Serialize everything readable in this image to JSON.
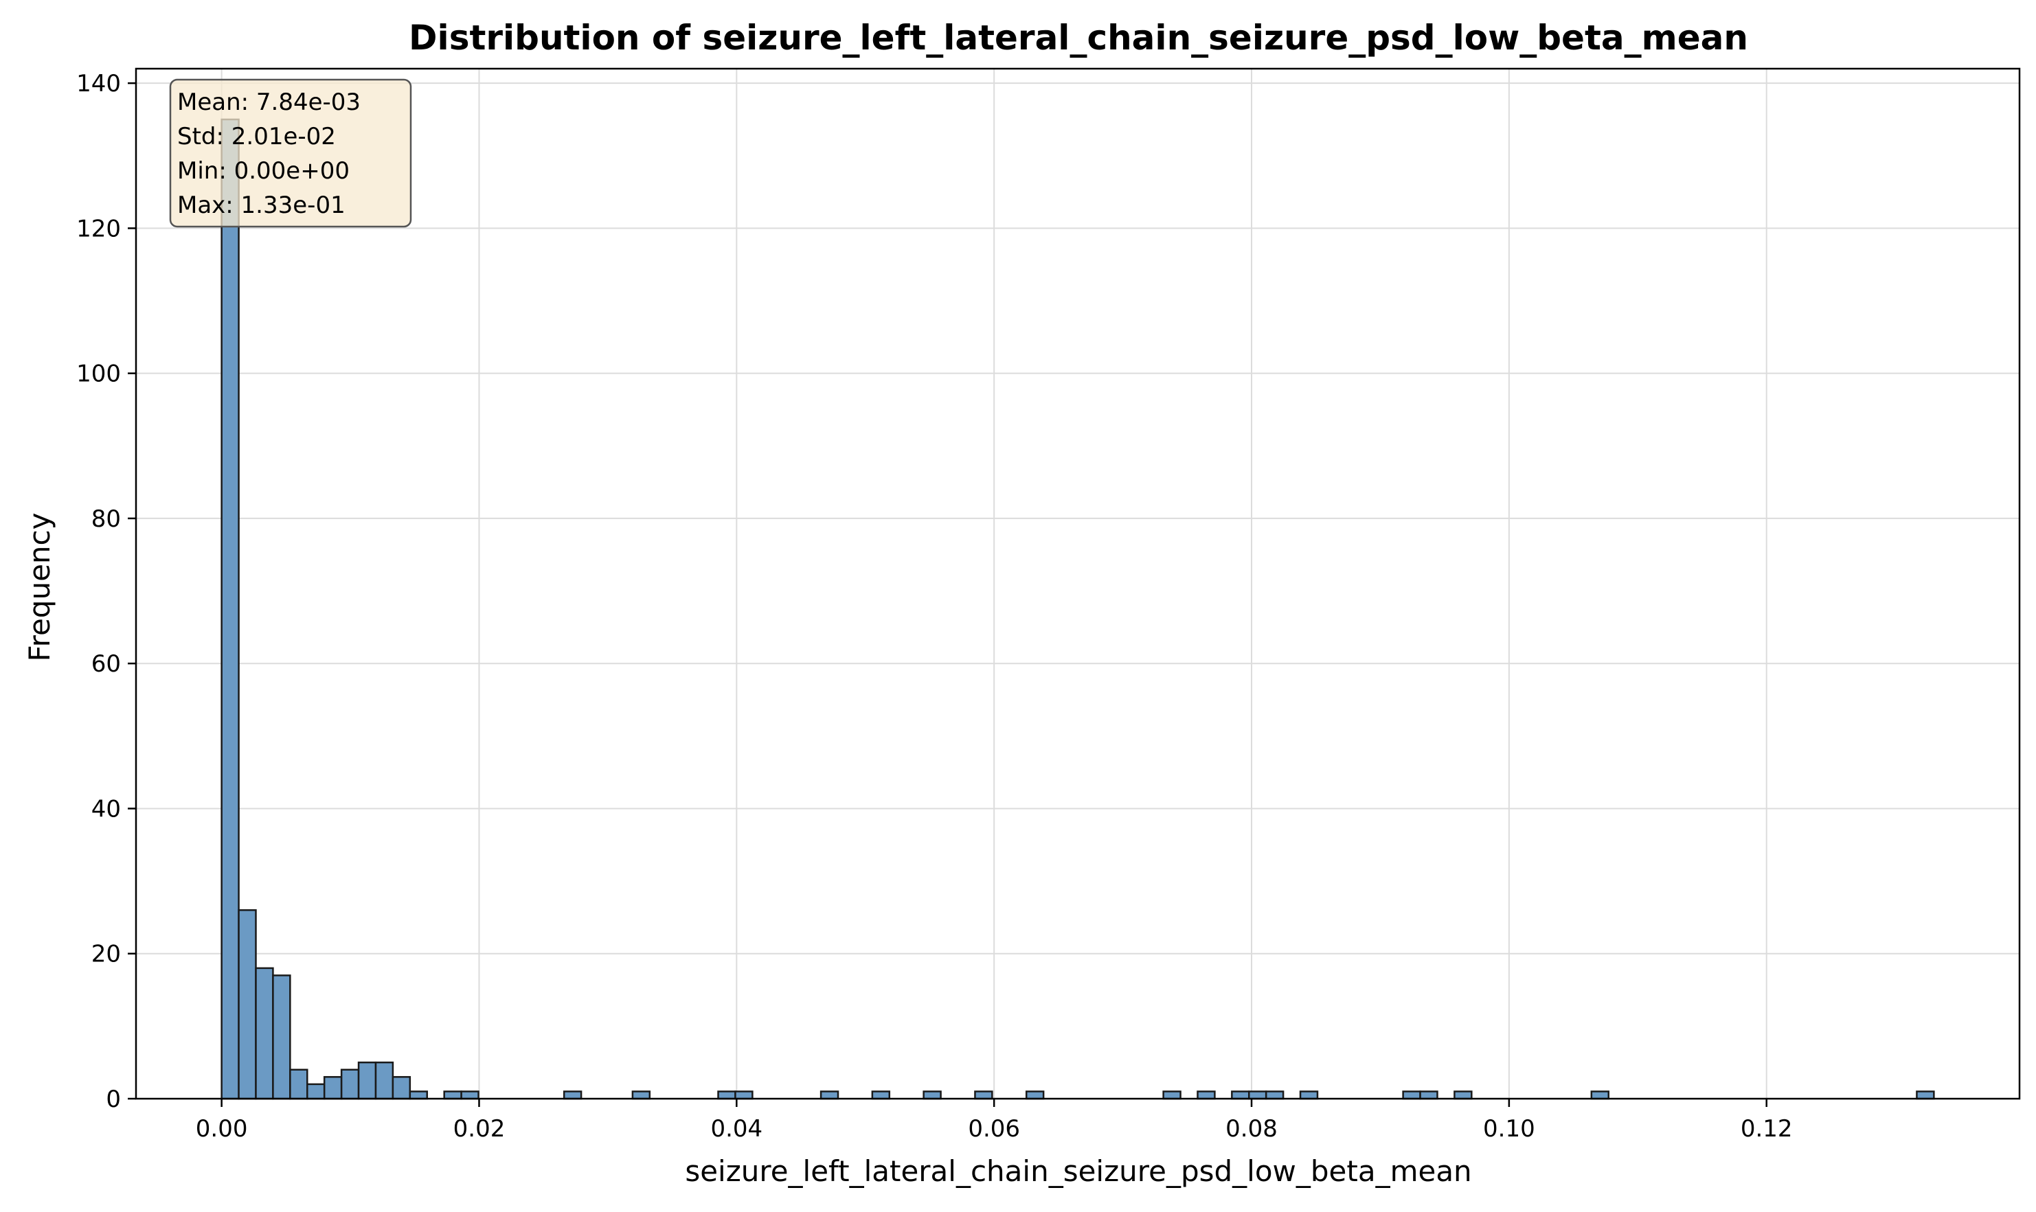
{
  "chart_data": {
    "type": "bar",
    "title": "Distribution of seizure_left_lateral_chain_seizure_psd_low_beta_mean",
    "xlabel": "seizure_left_lateral_chain_seizure_psd_low_beta_mean",
    "ylabel": "Frequency",
    "xlim": [
      -0.00665,
      0.13965
    ],
    "ylim": [
      0,
      142
    ],
    "xticks": [
      0.0,
      0.02,
      0.04,
      0.06,
      0.08,
      0.1,
      0.12
    ],
    "xtick_labels": [
      "0.00",
      "0.02",
      "0.04",
      "0.06",
      "0.08",
      "0.10",
      "0.12"
    ],
    "yticks": [
      0,
      20,
      40,
      60,
      80,
      100,
      120,
      140
    ],
    "ytick_labels": [
      "0",
      "20",
      "40",
      "60",
      "80",
      "100",
      "120",
      "140"
    ],
    "grid": true,
    "bin_width": 0.00133,
    "bins": [
      {
        "x": 0.0,
        "count": 135
      },
      {
        "x": 0.00133,
        "count": 26
      },
      {
        "x": 0.00266,
        "count": 18
      },
      {
        "x": 0.00399,
        "count": 17
      },
      {
        "x": 0.00532,
        "count": 4
      },
      {
        "x": 0.00665,
        "count": 2
      },
      {
        "x": 0.00798,
        "count": 3
      },
      {
        "x": 0.00931,
        "count": 4
      },
      {
        "x": 0.01064,
        "count": 5
      },
      {
        "x": 0.01197,
        "count": 5
      },
      {
        "x": 0.0133,
        "count": 3
      },
      {
        "x": 0.01463,
        "count": 1
      },
      {
        "x": 0.01729,
        "count": 1
      },
      {
        "x": 0.01862,
        "count": 1
      },
      {
        "x": 0.0266,
        "count": 1
      },
      {
        "x": 0.03192,
        "count": 1
      },
      {
        "x": 0.03857,
        "count": 1
      },
      {
        "x": 0.0399,
        "count": 1
      },
      {
        "x": 0.04655,
        "count": 1
      },
      {
        "x": 0.05054,
        "count": 1
      },
      {
        "x": 0.05453,
        "count": 1
      },
      {
        "x": 0.05852,
        "count": 1
      },
      {
        "x": 0.06251,
        "count": 1
      },
      {
        "x": 0.07315,
        "count": 1
      },
      {
        "x": 0.07581,
        "count": 1
      },
      {
        "x": 0.07847,
        "count": 1
      },
      {
        "x": 0.0798,
        "count": 1
      },
      {
        "x": 0.08113,
        "count": 1
      },
      {
        "x": 0.08379,
        "count": 1
      },
      {
        "x": 0.09177,
        "count": 1
      },
      {
        "x": 0.0931,
        "count": 1
      },
      {
        "x": 0.09576,
        "count": 1
      },
      {
        "x": 0.1064,
        "count": 1
      },
      {
        "x": 0.13167,
        "count": 1
      }
    ],
    "bar_color": "#6b9ac4",
    "bar_edge_color": "#1a1a1a",
    "stats_box": {
      "lines": [
        "Mean: 7.84e-03",
        "Std: 2.01e-02",
        "Min: 0.00e+00",
        "Max: 1.33e-01"
      ],
      "background": "#f7e9d0",
      "placement": "top-left"
    }
  }
}
